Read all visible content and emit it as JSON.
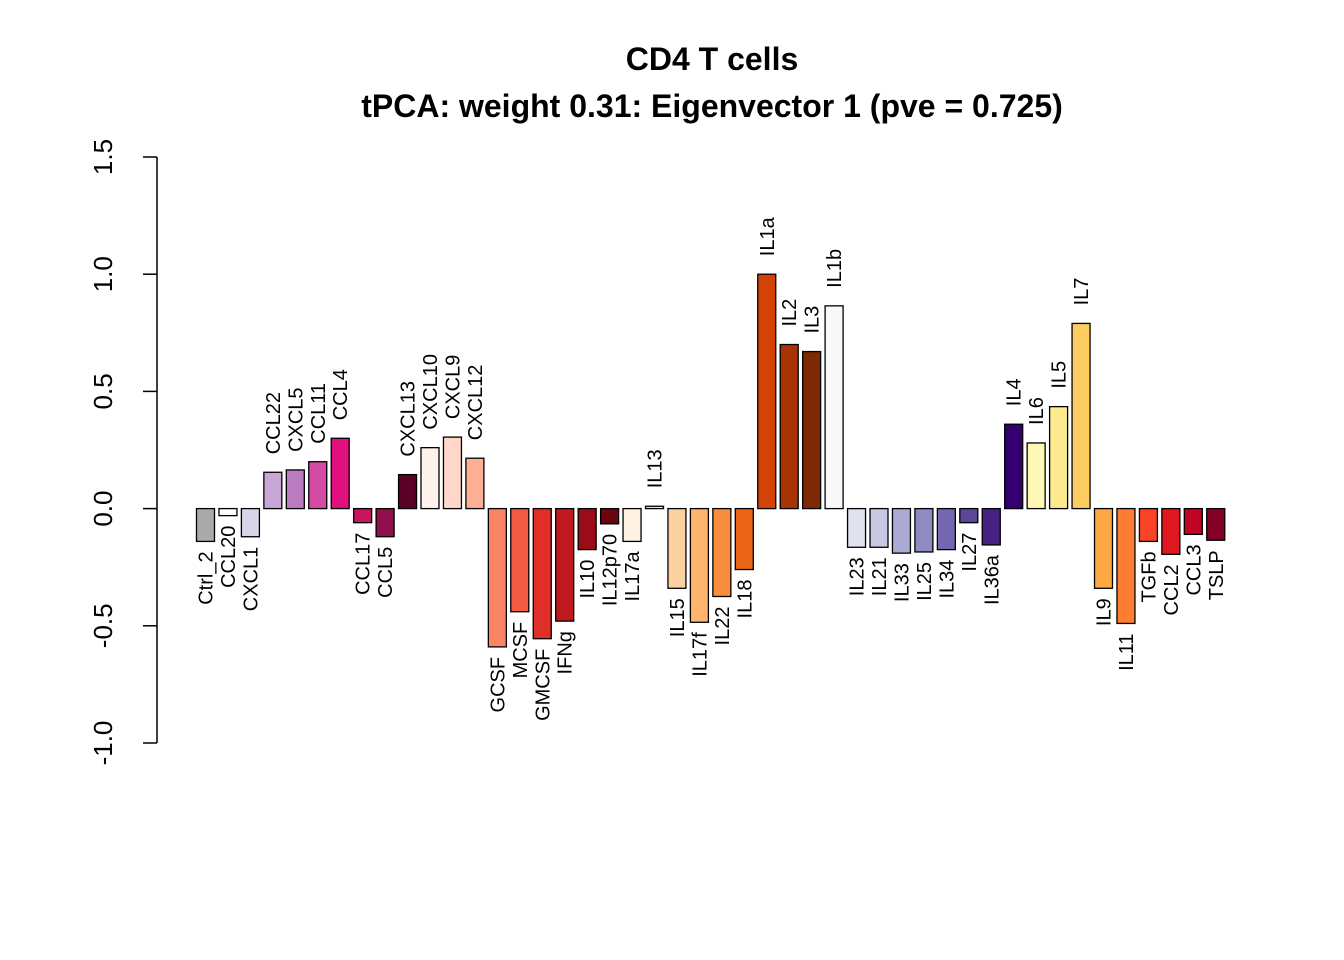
{
  "chart_data": {
    "type": "bar",
    "title": "CD4 T cells",
    "subtitle": "tPCA: weight 0.31: Eigenvector 1 (pve = 0.725)",
    "xlabel": "",
    "ylabel": "",
    "ylim": [
      -1.0,
      1.5
    ],
    "yticks": [
      "-1.0",
      "-0.5",
      "0.0",
      "0.5",
      "1.0",
      "1.5"
    ],
    "grid": false,
    "categories": [
      "Ctrl_2",
      "CCL20",
      "CXCL1",
      "CCL22",
      "CXCL5",
      "CCL11",
      "CCL4",
      "CCL17",
      "CCL5",
      "CXCL13",
      "CXCL10",
      "CXCL9",
      "CXCL12",
      "GCSF",
      "MCSF",
      "GMCSF",
      "IFNg",
      "IL10",
      "IL12p70",
      "IL17a",
      "IL13",
      "IL15",
      "IL17f",
      "IL22",
      "IL18",
      "IL1a",
      "IL2",
      "IL3",
      "IL1b",
      "IL23",
      "IL21",
      "IL33",
      "IL25",
      "IL34",
      "IL27",
      "IL36a",
      "IL4",
      "IL6",
      "IL5",
      "IL7",
      "IL9",
      "IL11",
      "TGFb",
      "CCL2",
      "CCL3",
      "TSLP"
    ],
    "values": [
      -0.14,
      -0.03,
      -0.12,
      0.155,
      0.165,
      0.2,
      0.3,
      -0.06,
      -0.12,
      0.145,
      0.26,
      0.305,
      0.215,
      -0.59,
      -0.44,
      -0.555,
      -0.48,
      -0.175,
      -0.065,
      -0.14,
      0.01,
      -0.34,
      -0.485,
      -0.375,
      -0.26,
      1.0,
      0.7,
      0.67,
      0.865,
      -0.165,
      -0.165,
      -0.19,
      -0.185,
      -0.175,
      -0.06,
      -0.155,
      0.36,
      0.28,
      0.435,
      0.79,
      -0.34,
      -0.49,
      -0.14,
      -0.195,
      -0.11,
      -0.135
    ],
    "colors": [
      "#aaaaaa",
      "#ffffff",
      "#dad5ea",
      "#c8a6d6",
      "#bb7cbf",
      "#d54aa2",
      "#e0107e",
      "#c91461",
      "#8e0f4a",
      "#5a0326",
      "#fff1eb",
      "#fed7c8",
      "#fcaf95",
      "#fb8466",
      "#f35b45",
      "#e02f28",
      "#be1a20",
      "#9a0d18",
      "#6a0612",
      "#fff2e2",
      "#fee7cf",
      "#fdd2a2",
      "#fdb56d",
      "#f88d3d",
      "#eb6519",
      "#d44208",
      "#a83304",
      "#7c2904",
      "#f8f8fb",
      "#e1e1ef",
      "#c9c8e2",
      "#abaad3",
      "#8e8bc2",
      "#7466b0",
      "#5d459a",
      "#472182",
      "#34006f",
      "#fff8b5",
      "#feea8e",
      "#fdcc61",
      "#fda944",
      "#fd7d31",
      "#f94327",
      "#e0181f",
      "#c00423",
      "#800026"
    ]
  }
}
